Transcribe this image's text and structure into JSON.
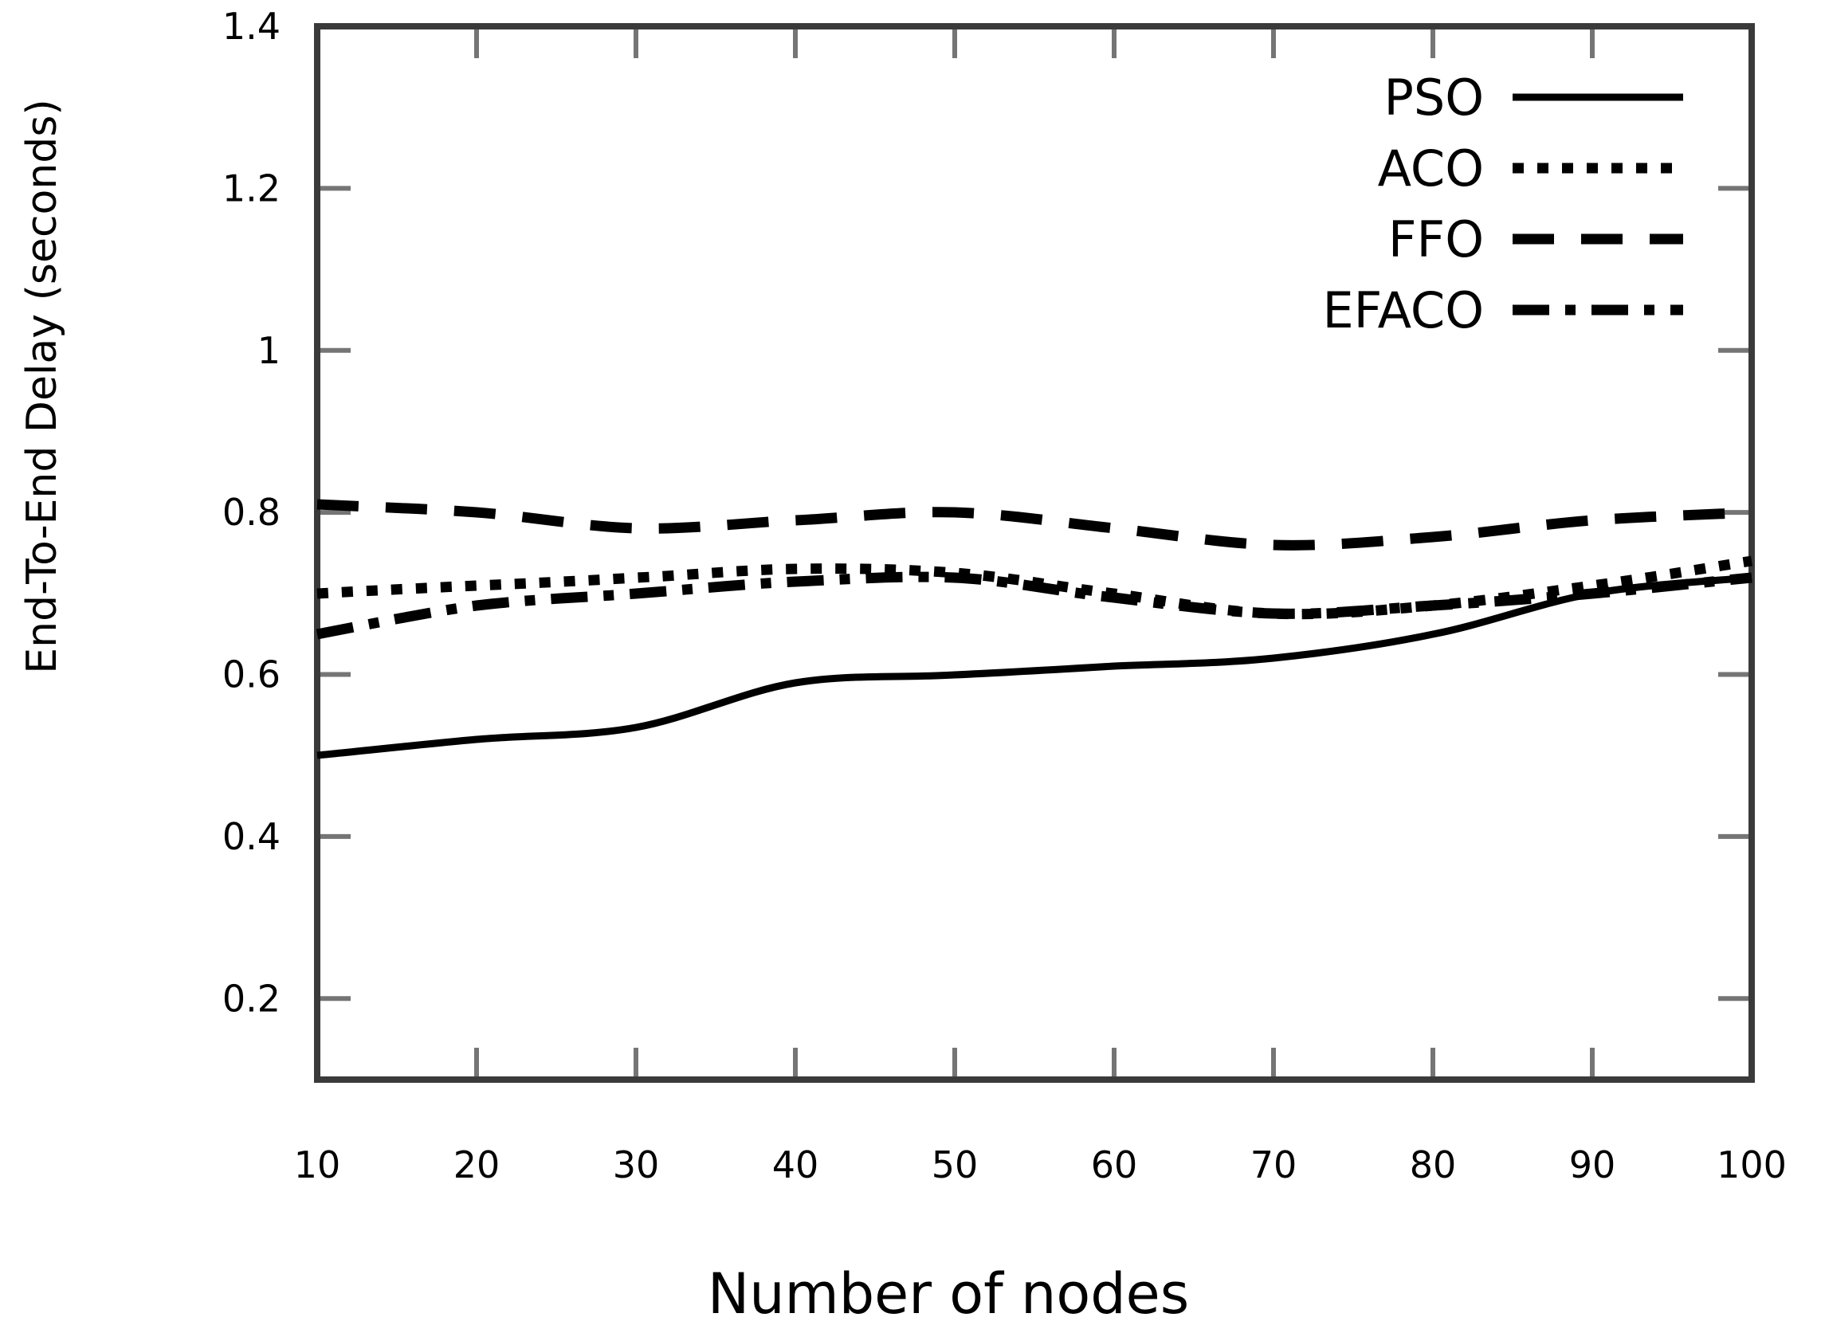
{
  "chart_data": {
    "type": "line",
    "title": "",
    "xlabel": "Number of nodes",
    "ylabel": "End-To-End Delay (seconds)",
    "x": [
      10,
      20,
      30,
      40,
      50,
      60,
      70,
      80,
      90,
      100
    ],
    "xlim": [
      10,
      100
    ],
    "ylim": [
      0.1,
      1.4
    ],
    "xtick_labels": [
      "10",
      "20",
      "30",
      "40",
      "50",
      "60",
      "70",
      "80",
      "90",
      "100"
    ],
    "ytick_values": [
      0.2,
      0.4,
      0.6,
      0.8,
      1.0,
      1.2,
      1.4
    ],
    "ytick_labels": [
      "0.2",
      "0.4",
      "0.6",
      "0.8",
      "1",
      "1.2",
      "1.4"
    ],
    "grid": false,
    "legend": {
      "position": "top-right-inside",
      "entries": [
        "PSO",
        "ACO",
        "FFO",
        "EFACO"
      ]
    },
    "series": [
      {
        "name": "PSO",
        "line_style": "solid",
        "color": "#000000",
        "values": [
          0.5,
          0.52,
          0.535,
          0.59,
          0.6,
          0.61,
          0.62,
          0.65,
          0.7,
          0.72
        ]
      },
      {
        "name": "ACO",
        "line_style": "dotted",
        "color": "#000000",
        "values": [
          0.7,
          0.71,
          0.72,
          0.73,
          0.725,
          0.7,
          0.675,
          0.685,
          0.71,
          0.74
        ]
      },
      {
        "name": "FFO",
        "line_style": "dashed",
        "color": "#000000",
        "values": [
          0.81,
          0.8,
          0.78,
          0.79,
          0.8,
          0.78,
          0.76,
          0.77,
          0.79,
          0.8
        ]
      },
      {
        "name": "EFACO",
        "line_style": "dash-dot",
        "color": "#000000",
        "values": [
          0.65,
          0.685,
          0.7,
          0.715,
          0.72,
          0.695,
          0.675,
          0.685,
          0.7,
          0.72
        ]
      }
    ],
    "axis_color": "#3a3a3a",
    "tick_color": "#757575"
  }
}
